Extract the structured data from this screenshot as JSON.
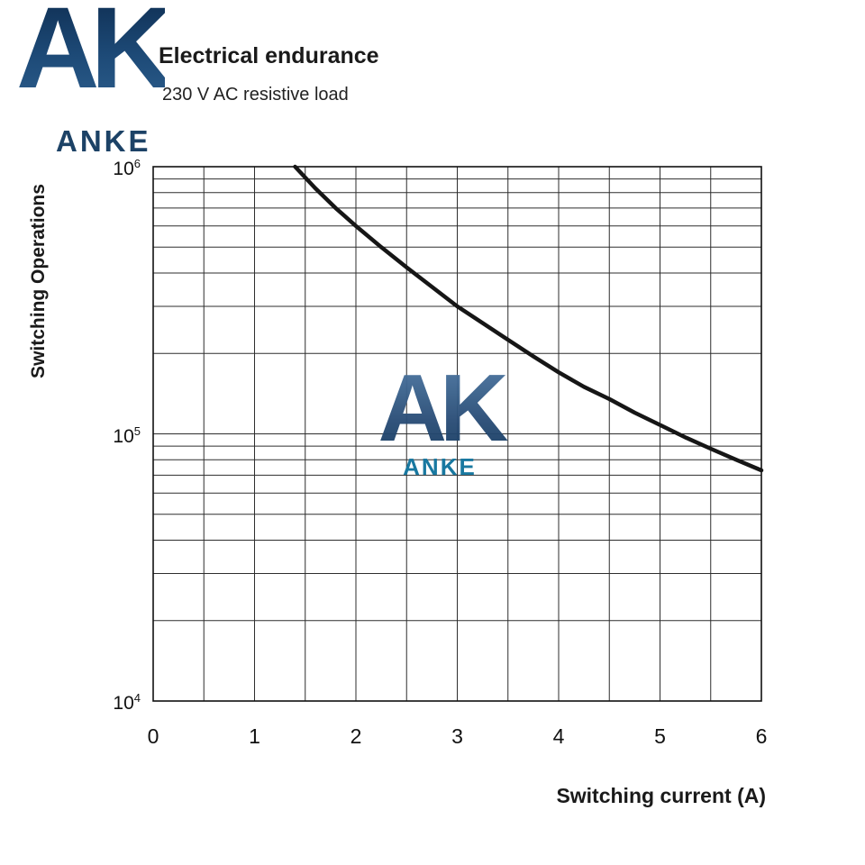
{
  "header": {
    "title": "Electrical endurance",
    "subtitle": "230 V AC resistive load"
  },
  "logo": {
    "monogram": "AK",
    "name": "ANKE"
  },
  "watermark": {
    "monogram": "AK",
    "name": "ANKE"
  },
  "chart_data": {
    "type": "line",
    "title": "Electrical endurance",
    "subtitle": "230 V AC resistive load",
    "xlabel": "Switching current (A)",
    "ylabel": "Switching Operations",
    "xlim": [
      0,
      6
    ],
    "ylim_log": [
      10000,
      1000000
    ],
    "x_minor_step": 0.5,
    "grid": true,
    "x_ticks": [
      0,
      1,
      2,
      3,
      4,
      5,
      6
    ],
    "y_ticks": [
      {
        "base": "10",
        "exp": "6",
        "value": 1000000
      },
      {
        "base": "10",
        "exp": "5",
        "value": 100000
      },
      {
        "base": "10",
        "exp": "4",
        "value": 10000
      }
    ],
    "series": [
      {
        "name": "electrical-endurance-230VAC-resistive",
        "points": [
          [
            1.4,
            1000000
          ],
          [
            1.6,
            830000
          ],
          [
            1.8,
            700000
          ],
          [
            2.0,
            600000
          ],
          [
            2.25,
            500000
          ],
          [
            2.5,
            420000
          ],
          [
            2.75,
            355000
          ],
          [
            3.0,
            300000
          ],
          [
            3.25,
            260000
          ],
          [
            3.5,
            225000
          ],
          [
            3.75,
            195000
          ],
          [
            4.0,
            170000
          ],
          [
            4.25,
            150000
          ],
          [
            4.5,
            135000
          ],
          [
            4.75,
            120000
          ],
          [
            5.0,
            108000
          ],
          [
            5.25,
            97000
          ],
          [
            5.5,
            88000
          ],
          [
            5.75,
            80000
          ],
          [
            6.0,
            73000
          ]
        ]
      }
    ]
  }
}
